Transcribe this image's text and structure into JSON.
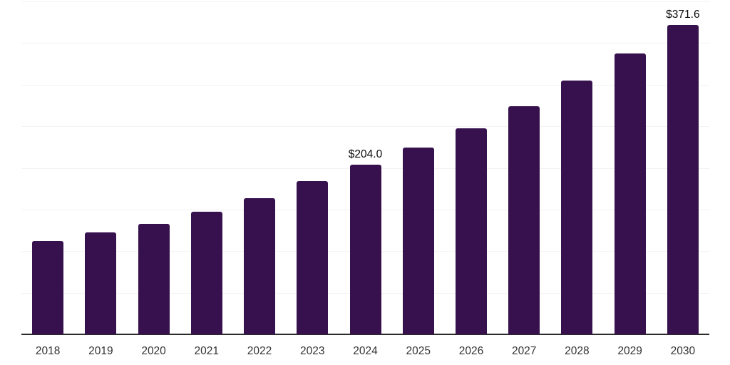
{
  "chart_data": {
    "type": "bar",
    "title": "",
    "xlabel": "",
    "ylabel": "",
    "categories": [
      "2018",
      "2019",
      "2020",
      "2021",
      "2022",
      "2023",
      "2024",
      "2025",
      "2026",
      "2027",
      "2028",
      "2029",
      "2030"
    ],
    "values": [
      111.8,
      122.5,
      132.5,
      147.6,
      163.9,
      183.9,
      204.0,
      224.7,
      247.9,
      274.1,
      304.7,
      337.5,
      371.6
    ],
    "annotations": [
      {
        "category": "2024",
        "text": "$204.0"
      },
      {
        "category": "2030",
        "text": "$371.6"
      }
    ],
    "ylim": [
      0,
      400
    ],
    "gridline_step": 50,
    "grid": "horizontal-only",
    "y_tick_labels_visible": false,
    "legend": "none",
    "colors": {
      "bar": "#36114D",
      "grid": "#F2F2F2",
      "axis": "#2B2B2B",
      "tick_label": "#333333",
      "data_label": "#0A0A0A",
      "background": "#FFFFFF"
    }
  }
}
